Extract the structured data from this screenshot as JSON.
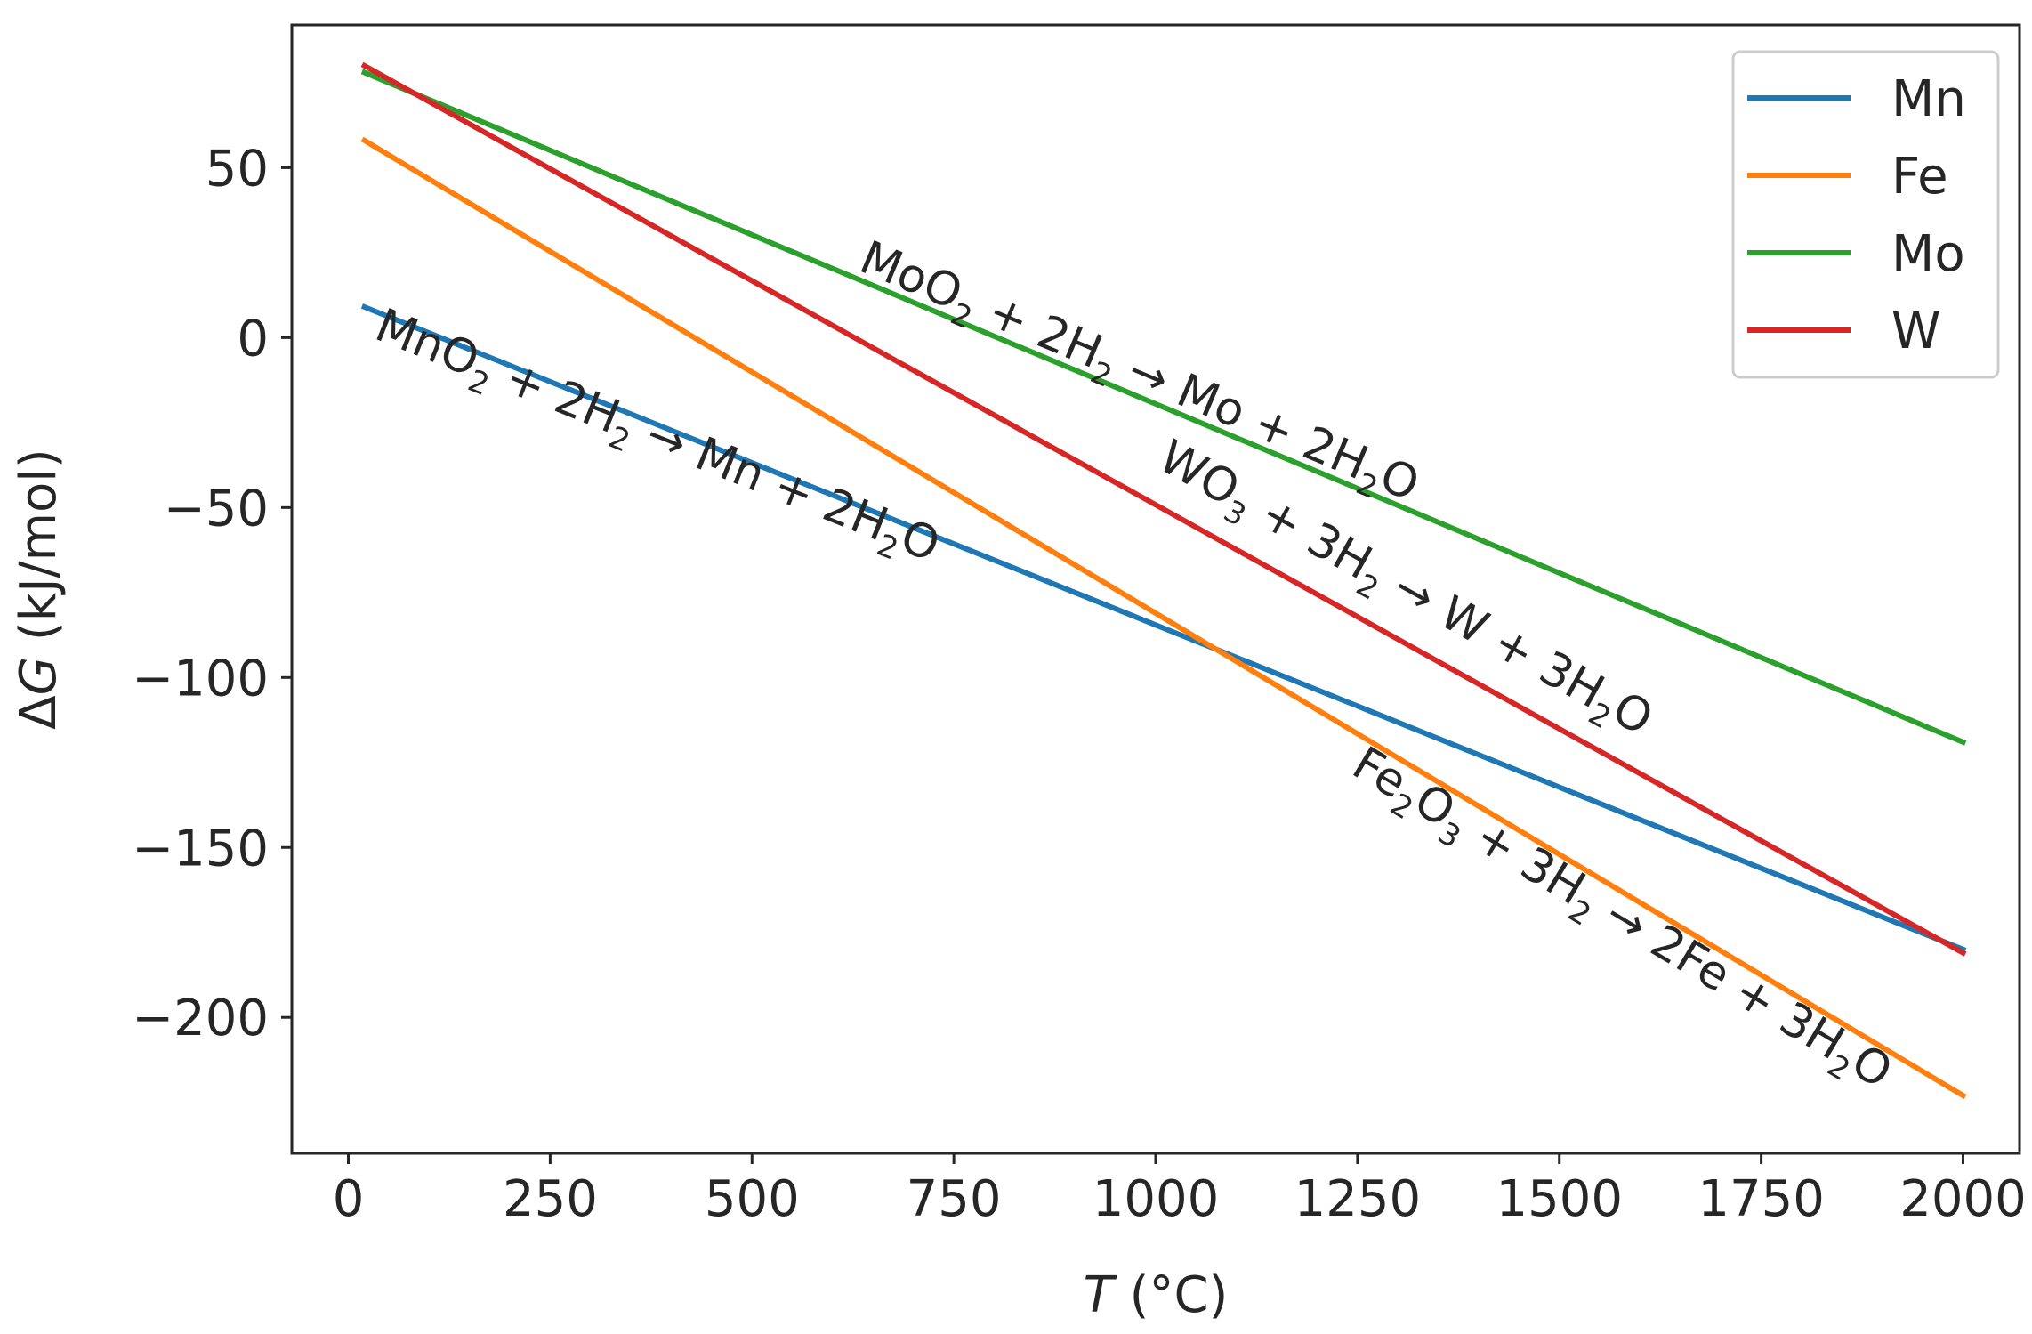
{
  "chart_data": {
    "type": "line",
    "title": "",
    "xlabel": {
      "var": "T",
      "unit": " (°C)"
    },
    "ylabel": {
      "prefix": "Δ",
      "var": "G",
      "unit": " (kJ/mol)"
    },
    "xlim": [
      -70,
      2070
    ],
    "ylim": [
      -240,
      92
    ],
    "xticks": [
      0,
      250,
      500,
      750,
      1000,
      1250,
      1500,
      1750,
      2000
    ],
    "xtick_labels": [
      "0",
      "250",
      "500",
      "750",
      "1000",
      "1250",
      "1500",
      "1750",
      "2000"
    ],
    "yticks": [
      -200,
      -150,
      -100,
      -50,
      0,
      50
    ],
    "ytick_labels": [
      "−200",
      "−150",
      "−100",
      "−50",
      "0",
      "50"
    ],
    "grid": false,
    "legend_loc": "upper right",
    "series": [
      {
        "name": "Mn",
        "color": "#1f77b4",
        "x": [
          20,
          2000
        ],
        "y": [
          9,
          -180
        ]
      },
      {
        "name": "Fe",
        "color": "#ff7f0e",
        "x": [
          20,
          2000
        ],
        "y": [
          58,
          -223
        ]
      },
      {
        "name": "Mo",
        "color": "#2ca02c",
        "x": [
          20,
          2000
        ],
        "y": [
          78,
          -119
        ]
      },
      {
        "name": "W",
        "color": "#d62728",
        "x": [
          20,
          2000
        ],
        "y": [
          80,
          -181
        ]
      }
    ],
    "annotations": [
      {
        "series": "Mn",
        "anchor": [
          30,
          0
        ],
        "parts": [
          [
            "MnO",
            "n"
          ],
          [
            "2",
            "s"
          ],
          [
            " + 2H",
            "n"
          ],
          [
            "2",
            "s"
          ],
          [
            " → Mn + 2H",
            "n"
          ],
          [
            "2",
            "s"
          ],
          [
            "O",
            "n"
          ]
        ]
      },
      {
        "series": "Mo",
        "anchor": [
          630,
          20
        ],
        "parts": [
          [
            "MoO",
            "n"
          ],
          [
            "2",
            "s"
          ],
          [
            " + 2H",
            "n"
          ],
          [
            "2",
            "s"
          ],
          [
            " → Mo + 2H",
            "n"
          ],
          [
            "2",
            "s"
          ],
          [
            "O",
            "n"
          ]
        ]
      },
      {
        "series": "W",
        "anchor": [
          1000,
          -38
        ],
        "parts": [
          [
            "WO",
            "n"
          ],
          [
            "3",
            "s"
          ],
          [
            " + 3H",
            "n"
          ],
          [
            "2",
            "s"
          ],
          [
            " → W + 3H",
            "n"
          ],
          [
            "2",
            "s"
          ],
          [
            "O",
            "n"
          ]
        ]
      },
      {
        "series": "Fe",
        "anchor": [
          1240,
          -128
        ],
        "parts": [
          [
            "Fe",
            "n"
          ],
          [
            "2",
            "s"
          ],
          [
            "O",
            "n"
          ],
          [
            "3",
            "s"
          ],
          [
            " + 3H",
            "n"
          ],
          [
            "2",
            "s"
          ],
          [
            " → 2Fe + 3H",
            "n"
          ],
          [
            "2",
            "s"
          ],
          [
            "O",
            "n"
          ]
        ]
      }
    ]
  }
}
